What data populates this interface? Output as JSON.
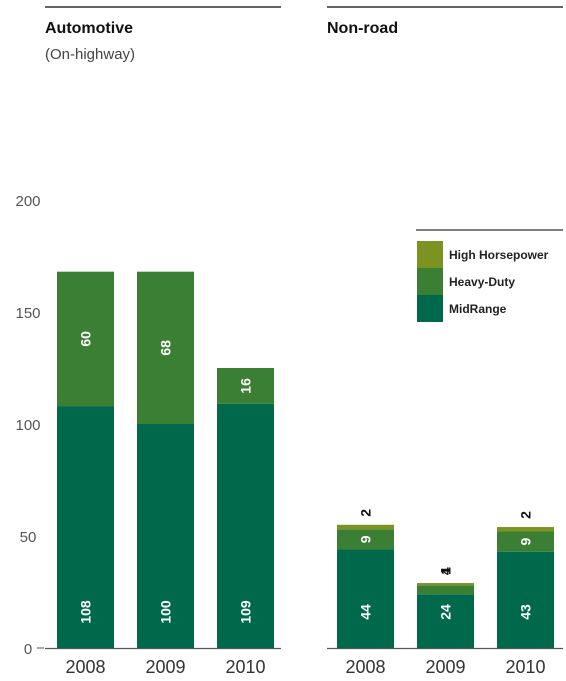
{
  "panels": [
    {
      "title": "Automotive",
      "subtitle": "(On-highway)"
    },
    {
      "title": "Non-road",
      "subtitle": ""
    }
  ],
  "colors": {
    "midrange": "#00694B",
    "heavy_duty": "#3A7F33",
    "high_horsepower": "#7C9322",
    "axis": "#555555",
    "label_text": "#ffffff",
    "outside_label_text": "#111111"
  },
  "chart_data": [
    {
      "type": "bar",
      "stacked": true,
      "title": "Automotive",
      "subtitle": "(On-highway)",
      "categories": [
        "2008",
        "2009",
        "2010"
      ],
      "series": [
        {
          "name": "MidRange",
          "values": [
            108,
            100,
            109
          ]
        },
        {
          "name": "Heavy-Duty",
          "values": [
            60,
            68,
            16
          ]
        }
      ],
      "ylim": [
        0,
        200
      ],
      "yticks": [
        0,
        50,
        100,
        150,
        200
      ],
      "grid": false
    },
    {
      "type": "bar",
      "stacked": true,
      "title": "Non-road",
      "categories": [
        "2008",
        "2009",
        "2010"
      ],
      "series": [
        {
          "name": "MidRange",
          "values": [
            44,
            24,
            43
          ]
        },
        {
          "name": "Heavy-Duty",
          "values": [
            9,
            4,
            9
          ]
        },
        {
          "name": "High Horsepower",
          "values": [
            2,
            1,
            2
          ]
        }
      ],
      "ylim": [
        0,
        200
      ],
      "grid": false,
      "legend": {
        "placement": "top-right",
        "entries": [
          "High Horsepower",
          "Heavy-Duty",
          "MidRange"
        ]
      }
    }
  ]
}
